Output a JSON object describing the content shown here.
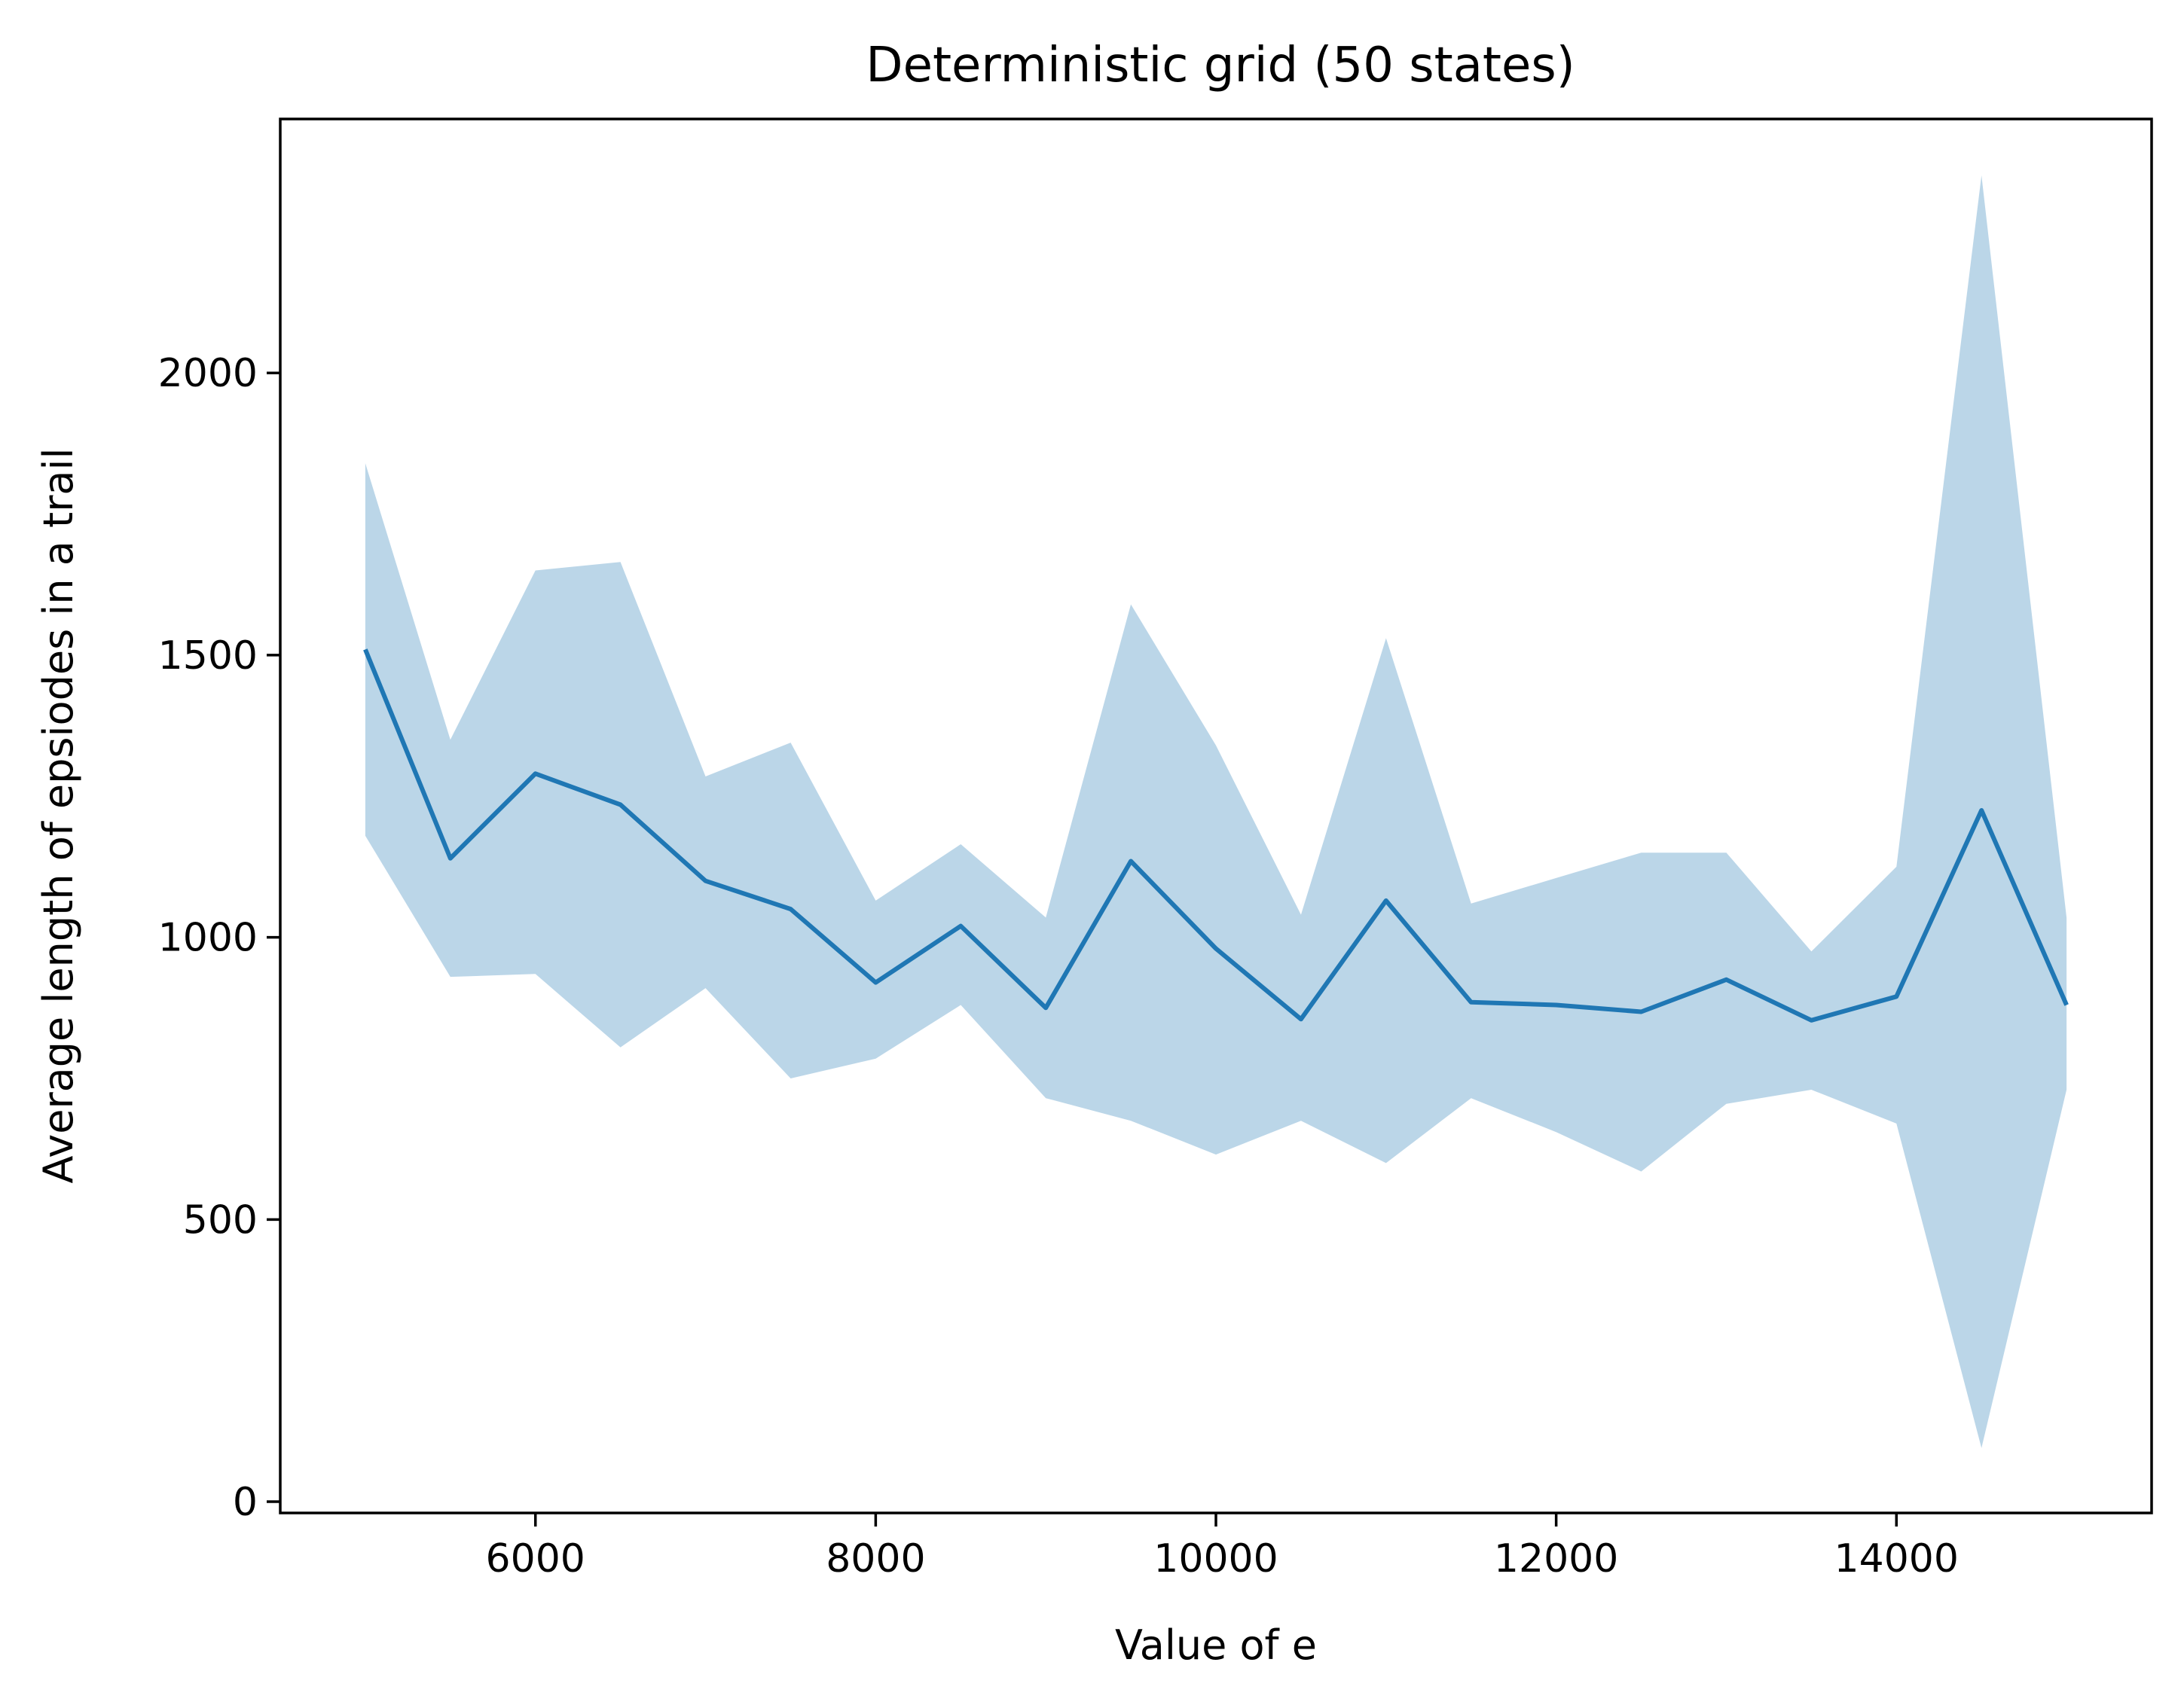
{
  "chart_data": {
    "type": "line",
    "title": "Deterministic grid (50 states)",
    "xlabel": "Value of e",
    "ylabel": "Average length of epsiodes in a trail",
    "xlim": [
      4500,
      15500
    ],
    "ylim": [
      -20,
      2450
    ],
    "x_ticks": [
      6000,
      8000,
      10000,
      12000,
      14000
    ],
    "x_tick_labels": [
      "6000",
      "8000",
      "10000",
      "12000",
      "14000"
    ],
    "y_ticks": [
      0,
      500,
      1000,
      1500,
      2000
    ],
    "y_tick_labels": [
      "0",
      "500",
      "1000",
      "1500",
      "2000"
    ],
    "grid": false,
    "colors": {
      "line": "#1f77b4",
      "band": "#1f77b4",
      "band_opacity": 0.3
    },
    "x": [
      5000,
      5500,
      6000,
      6500,
      7000,
      7500,
      8000,
      8500,
      9000,
      9500,
      10000,
      10500,
      11000,
      11500,
      12000,
      12500,
      13000,
      13500,
      14000,
      14500,
      15000
    ],
    "series": [
      {
        "values": [
          1510,
          1140,
          1290,
          1235,
          1100,
          1050,
          920,
          1020,
          875,
          1135,
          980,
          855,
          1065,
          885,
          880,
          868,
          925,
          853,
          895,
          1225,
          880
        ]
      }
    ],
    "band": {
      "upper": [
        1840,
        1350,
        1650,
        1665,
        1285,
        1345,
        1065,
        1165,
        1035,
        1590,
        1340,
        1040,
        1530,
        1060,
        1105,
        1150,
        1150,
        975,
        1125,
        2350,
        1035
      ],
      "lower": [
        1180,
        930,
        935,
        805,
        910,
        750,
        785,
        880,
        715,
        675,
        615,
        675,
        600,
        715,
        655,
        585,
        705,
        730,
        670,
        95,
        730
      ]
    }
  }
}
